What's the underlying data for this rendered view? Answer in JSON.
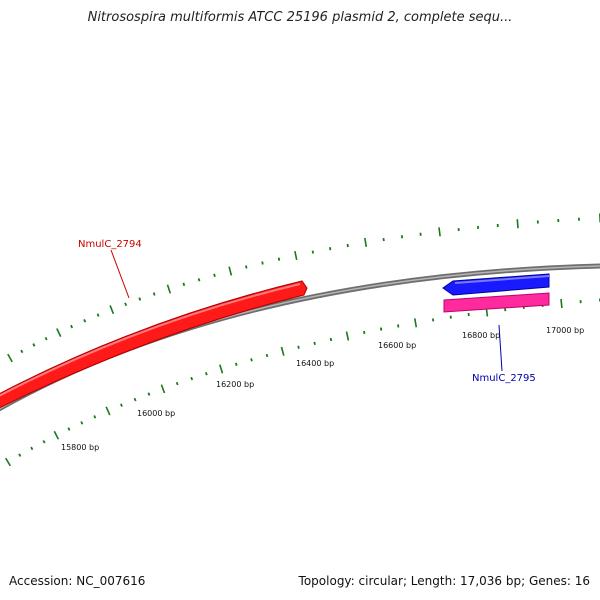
{
  "title": "Nitrosospira multiformis ATCC 25196 plasmid 2, complete sequ...",
  "footer": {
    "accession": "Accession: NC_007616",
    "summary": "Topology: circular; Length: 17,036 bp; Genes: 16"
  },
  "ruler_ticks": [
    "15800 bp",
    "16000 bp",
    "16200 bp",
    "16400 bp",
    "16600 bp",
    "16800 bp",
    "17000 bp"
  ],
  "genes": [
    {
      "name": "NmulC_2794",
      "label_color": "#cc0000",
      "color": "#ff1a1a",
      "strand": "plus"
    },
    {
      "name": "NmulC_2795",
      "label_color": "#0000aa",
      "color": "#1a1aff",
      "strand": "minus"
    }
  ],
  "colors": {
    "backbone": "#8a8a8a",
    "tick": "#1a7a1a",
    "pink_feature": "#ff2a9d"
  }
}
